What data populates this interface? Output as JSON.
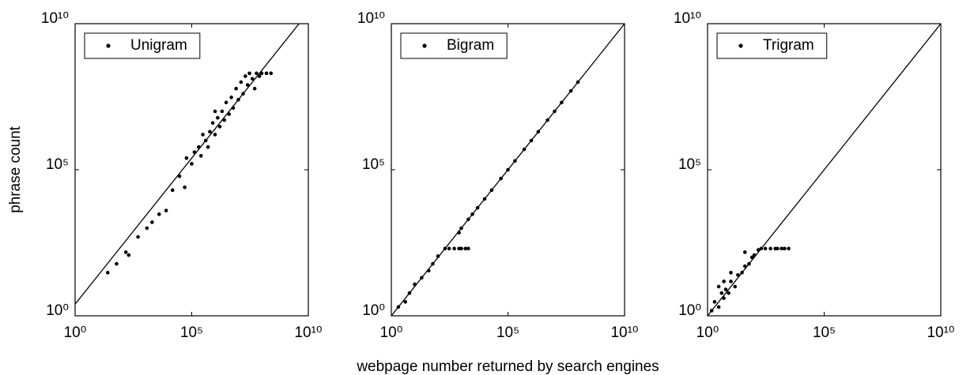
{
  "chart_data": [
    {
      "type": "scatter",
      "ylabel": "phrase count",
      "log_x": true,
      "log_y": true,
      "grid": false,
      "legend": "upper left",
      "xlim": [
        1,
        10000000000
      ],
      "ylim": [
        1,
        10000000000
      ],
      "xticks": [
        {
          "value": 1,
          "label": "10⁰"
        },
        {
          "value": 100000,
          "label": "10⁵"
        },
        {
          "value": 10000000000,
          "label": "10¹⁰"
        }
      ],
      "yticks": [
        {
          "value": 1,
          "label": "10⁰"
        },
        {
          "value": 100000,
          "label": "10⁵"
        },
        {
          "value": 10000000000,
          "label": "10¹⁰"
        }
      ],
      "series": [
        {
          "name": "Unigram",
          "color": "#000000",
          "x": [
            25,
            60,
            150,
            200,
            500,
            1200,
            2000,
            4000,
            8000,
            15000,
            30000,
            50000,
            60000,
            100000.0,
            130000.0,
            200000.0,
            250000.0,
            300000.0,
            400000.0,
            600000.0,
            800000.0,
            1000000.0,
            1300000.0,
            1600000.0,
            2000000.0,
            2500000.0,
            3000000.0,
            4000000.0,
            5000000.0,
            6000000.0,
            8000000.0,
            10000000.0,
            13000000.0,
            16000000.0,
            20000000.0,
            25000000.0,
            30000000.0,
            40000000.0,
            60000000.0,
            100000000.0,
            160000000.0,
            250000000.0,
            50000000.0,
            80000000.0,
            1000000.0,
            500000.0
          ],
          "values": [
            30,
            60,
            150,
            120,
            500,
            1000,
            1600,
            3000,
            4000,
            20000,
            60000,
            25000,
            250000.0,
            160000.0,
            400000.0,
            600000.0,
            300000.0,
            1600000.0,
            1000000.0,
            2000000.0,
            4000000.0,
            1600000.0,
            6000000.0,
            3000000.0,
            10000000.0,
            5000000.0,
            20000000.0,
            8000000.0,
            30000000.0,
            13000000.0,
            60000000.0,
            25000000.0,
            100000000.0,
            40000000.0,
            160000000.0,
            80000000.0,
            200000000.0,
            130000000.0,
            200000000.0,
            200000000.0,
            200000000.0,
            200000000.0,
            60000000.0,
            160000000.0,
            10000000.0,
            600000.0
          ]
        }
      ],
      "reference_line": {
        "color": "#000000",
        "x": [
          1,
          10000000000
        ],
        "values": [
          2.5,
          25000000000
        ]
      }
    },
    {
      "type": "scatter",
      "xlabel": "webpage number returned by search engines",
      "log_x": true,
      "log_y": true,
      "grid": false,
      "legend": "upper left",
      "xlim": [
        1,
        10000000000
      ],
      "ylim": [
        1,
        10000000000
      ],
      "xticks": [
        {
          "value": 1,
          "label": "10⁰"
        },
        {
          "value": 100000,
          "label": "10⁵"
        },
        {
          "value": 10000000000,
          "label": "10¹⁰"
        }
      ],
      "yticks": [
        {
          "value": 1,
          "label": "10⁰"
        },
        {
          "value": 100000,
          "label": "10⁵"
        },
        {
          "value": 10000000000,
          "label": "10¹⁰"
        }
      ],
      "series": [
        {
          "name": "Bigram",
          "color": "#000000",
          "x": [
            2,
            4,
            6,
            10,
            20,
            40,
            60,
            100,
            200,
            300,
            500,
            800,
            1000,
            1500,
            2000,
            800,
            1000,
            2000,
            3000,
            5000,
            10000.0,
            20000.0,
            50000.0,
            100000.0,
            200000.0,
            500000.0,
            1000000.0,
            2000000.0,
            5000000.0,
            10000000.0,
            20000000.0,
            50000000.0,
            100000000.0
          ],
          "values": [
            2,
            3,
            6,
            12,
            20,
            35,
            60,
            110,
            200,
            200,
            200,
            200,
            200,
            200,
            200,
            700,
            1000,
            2000,
            3000,
            5000,
            10000.0,
            20000.0,
            50000.0,
            100000.0,
            200000.0,
            500000.0,
            1000000.0,
            2000000.0,
            5000000.0,
            10000000.0,
            20000000.0,
            50000000.0,
            100000000.0
          ]
        }
      ],
      "reference_line": {
        "color": "#000000",
        "x": [
          1,
          10000000000
        ],
        "values": [
          1,
          10000000000
        ]
      }
    },
    {
      "type": "scatter",
      "log_x": true,
      "log_y": true,
      "grid": false,
      "legend": "upper left",
      "xlim": [
        1,
        10000000000
      ],
      "ylim": [
        1,
        10000000000
      ],
      "xticks": [
        {
          "value": 1,
          "label": "10⁰"
        },
        {
          "value": 100000,
          "label": "10⁵"
        },
        {
          "value": 10000000000,
          "label": "10¹⁰"
        }
      ],
      "yticks": [
        {
          "value": 1,
          "label": "10⁰"
        },
        {
          "value": 100000,
          "label": "10⁵"
        },
        {
          "value": 10000000000,
          "label": "10¹⁰"
        }
      ],
      "series": [
        {
          "name": "Trigram",
          "color": "#000000",
          "x": [
            1.5,
            2,
            3,
            4,
            5,
            6,
            8,
            10,
            15,
            20,
            30,
            40,
            60,
            80,
            100,
            150,
            200,
            300,
            500,
            800,
            1000,
            1500,
            2000,
            3000,
            3,
            5,
            10,
            40
          ],
          "values": [
            1.5,
            3,
            2,
            6,
            4,
            8,
            6,
            15,
            10,
            25,
            30,
            50,
            60,
            100,
            120,
            180,
            200,
            200,
            200,
            200,
            200,
            200,
            200,
            200,
            10,
            15,
            30,
            150
          ]
        }
      ],
      "reference_line": {
        "color": "#000000",
        "x": [
          1,
          10000000000
        ],
        "values": [
          1,
          10000000000
        ]
      }
    }
  ]
}
